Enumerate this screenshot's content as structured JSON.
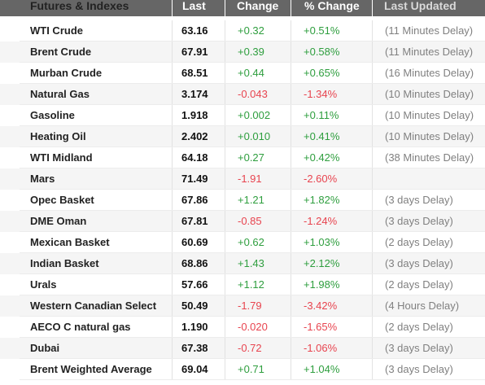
{
  "table": {
    "headers": {
      "name": "Futures & Indexes",
      "last": "Last",
      "change": "Change",
      "pct": "% Change",
      "updated": "Last Updated"
    },
    "rows": [
      {
        "name": "WTI Crude",
        "last": "63.16",
        "change": "+0.32",
        "pct": "+0.51%",
        "updated": "(11 Minutes Delay)",
        "direction": "up"
      },
      {
        "name": "Brent Crude",
        "last": "67.91",
        "change": "+0.39",
        "pct": "+0.58%",
        "updated": "(11 Minutes Delay)",
        "direction": "up"
      },
      {
        "name": "Murban Crude",
        "last": "68.51",
        "change": "+0.44",
        "pct": "+0.65%",
        "updated": "(16 Minutes Delay)",
        "direction": "up"
      },
      {
        "name": "Natural Gas",
        "last": "3.174",
        "change": "-0.043",
        "pct": "-1.34%",
        "updated": "(10 Minutes Delay)",
        "direction": "down"
      },
      {
        "name": "Gasoline",
        "last": "1.918",
        "change": "+0.002",
        "pct": "+0.11%",
        "updated": "(10 Minutes Delay)",
        "direction": "up"
      },
      {
        "name": "Heating Oil",
        "last": "2.402",
        "change": "+0.010",
        "pct": "+0.41%",
        "updated": "(10 Minutes Delay)",
        "direction": "up"
      },
      {
        "name": "WTI Midland",
        "last": "64.18",
        "change": "+0.27",
        "pct": "+0.42%",
        "updated": "(38 Minutes Delay)",
        "direction": "up"
      },
      {
        "name": "Mars",
        "last": "71.49",
        "change": "-1.91",
        "pct": "-2.60%",
        "updated": "",
        "direction": "down"
      },
      {
        "name": "Opec Basket",
        "last": "67.86",
        "change": "+1.21",
        "pct": "+1.82%",
        "updated": "(3 days Delay)",
        "direction": "up"
      },
      {
        "name": "DME Oman",
        "last": "67.81",
        "change": "-0.85",
        "pct": "-1.24%",
        "updated": "(3 days Delay)",
        "direction": "down"
      },
      {
        "name": "Mexican Basket",
        "last": "60.69",
        "change": "+0.62",
        "pct": "+1.03%",
        "updated": "(2 days Delay)",
        "direction": "up"
      },
      {
        "name": "Indian Basket",
        "last": "68.86",
        "change": "+1.43",
        "pct": "+2.12%",
        "updated": "(3 days Delay)",
        "direction": "up"
      },
      {
        "name": "Urals",
        "last": "57.66",
        "change": "+1.12",
        "pct": "+1.98%",
        "updated": "(2 days Delay)",
        "direction": "up"
      },
      {
        "name": "Western Canadian Select",
        "last": "50.49",
        "change": "-1.79",
        "pct": "-3.42%",
        "updated": "(4 Hours Delay)",
        "direction": "down"
      },
      {
        "name": "AECO C natural gas",
        "last": "1.190",
        "change": "-0.020",
        "pct": "-1.65%",
        "updated": "(2 days Delay)",
        "direction": "down"
      },
      {
        "name": "Dubai",
        "last": "67.38",
        "change": "-0.72",
        "pct": "-1.06%",
        "updated": "(3 days Delay)",
        "direction": "down"
      },
      {
        "name": "Brent Weighted Average",
        "last": "69.04",
        "change": "+0.71",
        "pct": "+1.04%",
        "updated": "(3 days Delay)",
        "direction": "up"
      }
    ]
  },
  "colors": {
    "header_bg": "#666666",
    "positive": "#2e9e3e",
    "negative": "#e8444f",
    "muted": "#808080"
  }
}
